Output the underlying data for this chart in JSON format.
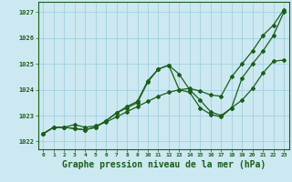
{
  "background_color": "#cce8f0",
  "grid_color": "#99ccdd",
  "line_color": "#1a5e1a",
  "xlabel": "Graphe pression niveau de la mer (hPa)",
  "xlabel_fontsize": 7,
  "xlim": [
    -0.5,
    23.5
  ],
  "ylim": [
    1021.7,
    1027.4
  ],
  "xticks": [
    0,
    1,
    2,
    3,
    4,
    5,
    6,
    7,
    8,
    9,
    10,
    11,
    12,
    13,
    14,
    15,
    16,
    17,
    18,
    19,
    20,
    21,
    22,
    23
  ],
  "yticks": [
    1022,
    1023,
    1024,
    1025,
    1026,
    1027
  ],
  "line1_x": [
    0,
    1,
    2,
    3,
    4,
    5,
    6,
    7,
    8,
    9,
    10,
    11,
    12,
    13,
    14,
    15,
    16,
    17,
    18,
    19,
    20,
    21,
    22,
    23
  ],
  "line1_y": [
    1022.3,
    1022.55,
    1022.55,
    1022.65,
    1022.55,
    1022.6,
    1022.75,
    1022.95,
    1023.15,
    1023.35,
    1023.55,
    1023.75,
    1023.9,
    1024.0,
    1024.05,
    1023.95,
    1023.8,
    1023.75,
    1024.5,
    1025.0,
    1025.5,
    1026.1,
    1026.5,
    1027.1
  ],
  "line2_x": [
    0,
    1,
    2,
    3,
    4,
    5,
    6,
    7,
    8,
    9,
    10,
    11,
    12,
    13,
    14,
    15,
    16,
    17,
    18,
    19,
    20,
    21,
    22,
    23
  ],
  "line2_y": [
    1022.3,
    1022.55,
    1022.55,
    1022.5,
    1022.45,
    1022.55,
    1022.8,
    1023.1,
    1023.35,
    1023.55,
    1024.35,
    1024.8,
    1024.95,
    1024.6,
    1024.0,
    1023.6,
    1023.15,
    1023.0,
    1023.3,
    1023.6,
    1024.05,
    1024.65,
    1025.1,
    1025.15
  ],
  "line3_x": [
    0,
    1,
    2,
    3,
    4,
    5,
    6,
    7,
    8,
    9,
    10,
    11,
    12,
    13,
    14,
    15,
    16,
    17,
    18,
    19,
    20,
    21,
    22,
    23
  ],
  "line3_y": [
    1022.3,
    1022.55,
    1022.55,
    1022.5,
    1022.45,
    1022.55,
    1022.8,
    1023.1,
    1023.3,
    1023.5,
    1024.3,
    1024.8,
    1024.95,
    1024.0,
    1023.9,
    1023.3,
    1023.05,
    1022.95,
    1023.3,
    1024.45,
    1025.0,
    1025.5,
    1026.1,
    1027.0
  ],
  "marker_style": "D",
  "marker_size": 2.0,
  "linewidth": 0.9
}
